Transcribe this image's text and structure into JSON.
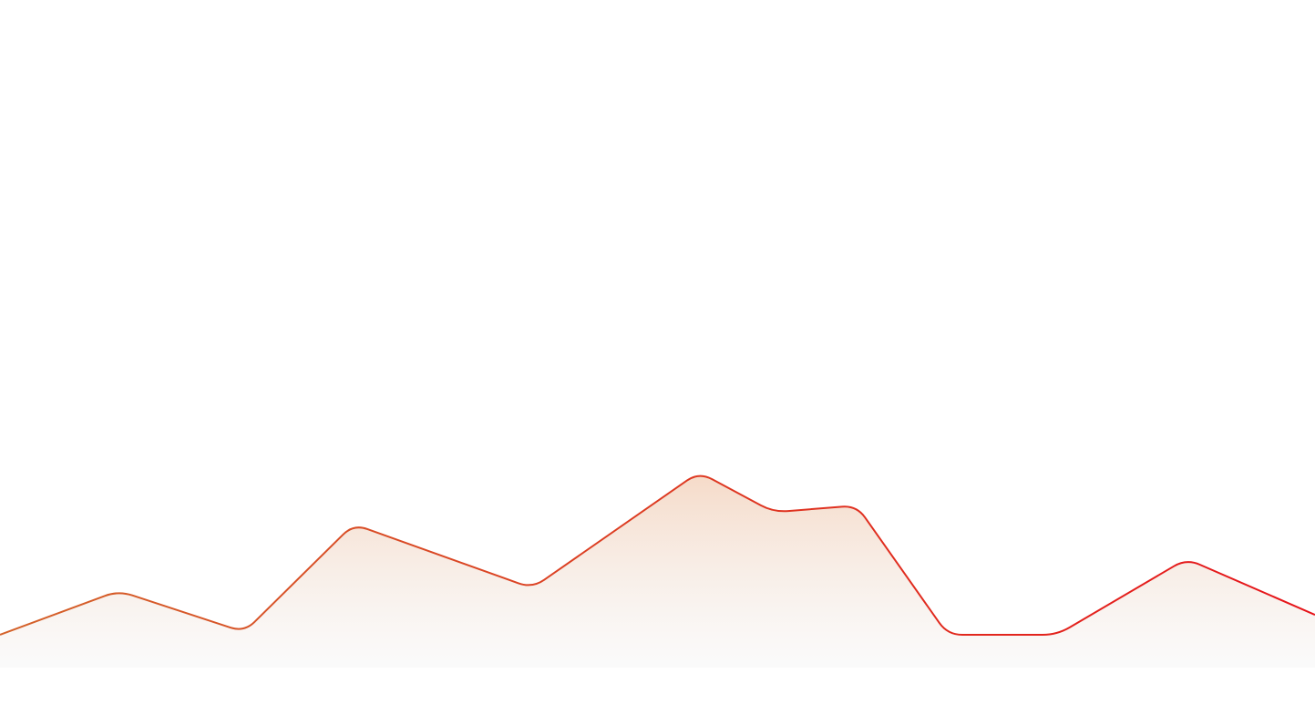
{
  "chart_data": {
    "type": "area",
    "title": "",
    "xlabel": "",
    "ylabel": "",
    "x": [
      0,
      1,
      2,
      3,
      4,
      5,
      6,
      7,
      8,
      9,
      10,
      11
    ],
    "series": [
      {
        "values": [
          5,
          38,
          7,
          88,
          40,
          127,
          97,
          102,
          5,
          5,
          62,
          20
        ]
      }
    ],
    "ylim": [
      0,
      175
    ],
    "grid": false,
    "legend": "none",
    "colors": {
      "line_start": "#d4622a",
      "line_end": "#e6141a",
      "fill_top": "#f5d9c6",
      "fill_bottom": "#f6f6f6",
      "background": "#ffffff"
    }
  }
}
